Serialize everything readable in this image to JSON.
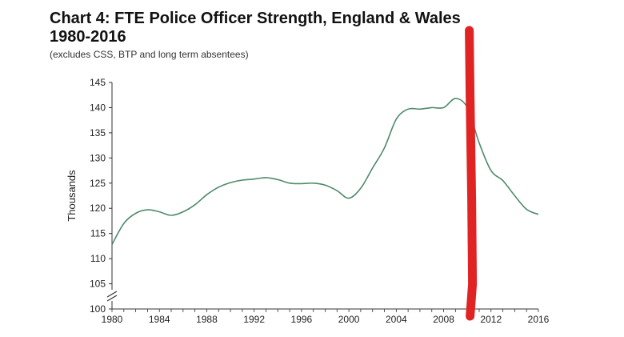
{
  "chart_data": {
    "type": "line",
    "title_line1": "Chart 4: FTE Police Officer Strength, England & Wales",
    "title_line2": "1980-2016",
    "subtitle": "(excludes CSS, BTP and long term absentees)",
    "ylabel": "Thousands",
    "xlabel": "",
    "xlim": [
      1980,
      2016
    ],
    "ylim": [
      100,
      145
    ],
    "y_axis_break": true,
    "grid": false,
    "x_ticks": [
      "1980",
      "1984",
      "1988",
      "1992",
      "1996",
      "2000",
      "2004",
      "2008",
      "2012",
      "2016"
    ],
    "y_ticks": [
      "100",
      "105",
      "110",
      "115",
      "120",
      "125",
      "130",
      "135",
      "140",
      "145"
    ],
    "series": [
      {
        "color": "#4f8a6a",
        "x": [
          1980,
          1981,
          1982,
          1983,
          1984,
          1985,
          1986,
          1987,
          1988,
          1989,
          1990,
          1991,
          1992,
          1993,
          1994,
          1995,
          1996,
          1997,
          1998,
          1999,
          2000,
          2001,
          2002,
          2003,
          2004,
          2005,
          2006,
          2007,
          2008,
          2009,
          2010,
          2011,
          2012,
          2013,
          2014,
          2015,
          2016
        ],
        "y": [
          112.8,
          117.0,
          119.0,
          119.7,
          119.3,
          118.6,
          119.3,
          120.7,
          122.7,
          124.2,
          125.1,
          125.6,
          125.8,
          126.1,
          125.7,
          125.0,
          124.9,
          125.0,
          124.6,
          123.5,
          122.0,
          124.0,
          128.0,
          132.0,
          137.7,
          139.7,
          139.7,
          140.0,
          140.0,
          141.8,
          140.0,
          133.0,
          127.5,
          125.5,
          122.5,
          119.8,
          118.8
        ]
      }
    ],
    "annotation": {
      "type": "vertical-marker",
      "x": 2010.3,
      "color": "#e02424"
    }
  }
}
